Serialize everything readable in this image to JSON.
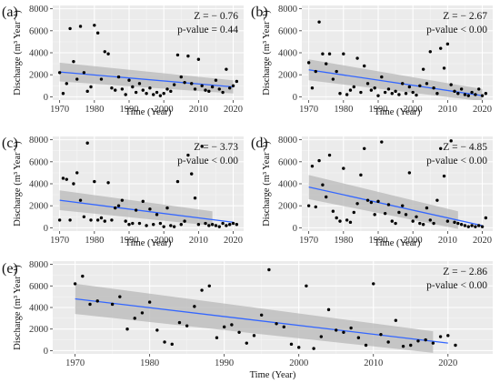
{
  "chart_data": [
    {
      "panel": "(a)",
      "type": "scatter",
      "x_title": "Time (Year)",
      "y_title": "Discharge",
      "y_unit": "(m³ Year⁻¹)",
      "stats": [
        "Z = − 0.76",
        "p-value = 0.44"
      ],
      "xlim": [
        1968,
        2023
      ],
      "ylim": [
        -300,
        8300
      ],
      "x_ticks": [
        1970,
        1980,
        1990,
        2000,
        2010,
        2020
      ],
      "y_ticks": [
        0,
        2000,
        4000,
        6000,
        8000
      ],
      "trend": [
        [
          1970,
          2250
        ],
        [
          2020,
          900
        ]
      ],
      "ci": {
        "x": [
          1970,
          2020
        ],
        "upper": [
          3100,
          1500
        ],
        "lower": [
          1400,
          300
        ]
      },
      "points": [
        [
          1970,
          2200
        ],
        [
          1971,
          300
        ],
        [
          1972,
          1200
        ],
        [
          1973,
          6200
        ],
        [
          1974,
          3200
        ],
        [
          1975,
          1600
        ],
        [
          1976,
          6400
        ],
        [
          1977,
          2200
        ],
        [
          1978,
          500
        ],
        [
          1979,
          900
        ],
        [
          1980,
          6500
        ],
        [
          1981,
          5800
        ],
        [
          1982,
          1600
        ],
        [
          1983,
          4100
        ],
        [
          1984,
          3900
        ],
        [
          1985,
          800
        ],
        [
          1986,
          600
        ],
        [
          1987,
          1800
        ],
        [
          1988,
          700
        ],
        [
          1989,
          200
        ],
        [
          1990,
          1500
        ],
        [
          1991,
          900
        ],
        [
          1992,
          400
        ],
        [
          1993,
          1200
        ],
        [
          1994,
          600
        ],
        [
          1995,
          300
        ],
        [
          1996,
          800
        ],
        [
          1997,
          200
        ],
        [
          1998,
          400
        ],
        [
          1999,
          100
        ],
        [
          2000,
          300
        ],
        [
          2001,
          700
        ],
        [
          2002,
          500
        ],
        [
          2003,
          1100
        ],
        [
          2004,
          3800
        ],
        [
          2005,
          1800
        ],
        [
          2006,
          1300
        ],
        [
          2007,
          3700
        ],
        [
          2008,
          1200
        ],
        [
          2009,
          700
        ],
        [
          2010,
          3400
        ],
        [
          2011,
          1000
        ],
        [
          2012,
          600
        ],
        [
          2013,
          500
        ],
        [
          2014,
          900
        ],
        [
          2015,
          1500
        ],
        [
          2016,
          700
        ],
        [
          2017,
          400
        ],
        [
          2018,
          2500
        ],
        [
          2019,
          800
        ],
        [
          2020,
          1000
        ],
        [
          2021,
          1400
        ]
      ]
    },
    {
      "panel": "(b)",
      "type": "scatter",
      "x_title": "Time (Year)",
      "y_title": "Discharge",
      "y_unit": "(m³ Year⁻¹)",
      "stats": [
        "Z = − 2.67",
        "p-value < 0.00"
      ],
      "xlim": [
        1968,
        2023
      ],
      "ylim": [
        -300,
        8300
      ],
      "x_ticks": [
        1970,
        1980,
        1990,
        2000,
        2010,
        2020
      ],
      "y_ticks": [
        0,
        2000,
        4000,
        6000,
        8000
      ],
      "trend": [
        [
          1970,
          2450
        ],
        [
          2020,
          100
        ]
      ],
      "ci": {
        "x": [
          1970,
          2020
        ],
        "upper": [
          3400,
          700
        ],
        "lower": [
          1500,
          -400
        ]
      },
      "points": [
        [
          1970,
          3100
        ],
        [
          1971,
          800
        ],
        [
          1972,
          2300
        ],
        [
          1973,
          6800
        ],
        [
          1974,
          3900
        ],
        [
          1975,
          3000
        ],
        [
          1976,
          3900
        ],
        [
          1977,
          1600
        ],
        [
          1978,
          2300
        ],
        [
          1979,
          300
        ],
        [
          1980,
          3900
        ],
        [
          1981,
          200
        ],
        [
          1982,
          600
        ],
        [
          1983,
          900
        ],
        [
          1984,
          3500
        ],
        [
          1985,
          400
        ],
        [
          1986,
          2800
        ],
        [
          1987,
          1200
        ],
        [
          1988,
          600
        ],
        [
          1989,
          800
        ],
        [
          1990,
          100
        ],
        [
          1991,
          1800
        ],
        [
          1992,
          400
        ],
        [
          1993,
          700
        ],
        [
          1994,
          300
        ],
        [
          1995,
          500
        ],
        [
          1996,
          200
        ],
        [
          1997,
          1200
        ],
        [
          1998,
          300
        ],
        [
          1999,
          900
        ],
        [
          2000,
          400
        ],
        [
          2001,
          150
        ],
        [
          2002,
          1000
        ],
        [
          2003,
          2500
        ],
        [
          2004,
          1200
        ],
        [
          2005,
          4100
        ],
        [
          2006,
          800
        ],
        [
          2007,
          300
        ],
        [
          2008,
          4400
        ],
        [
          2009,
          2600
        ],
        [
          2010,
          4800
        ],
        [
          2011,
          1100
        ],
        [
          2012,
          500
        ],
        [
          2013,
          300
        ],
        [
          2014,
          700
        ],
        [
          2015,
          200
        ],
        [
          2016,
          100
        ],
        [
          2017,
          400
        ],
        [
          2018,
          200
        ],
        [
          2019,
          700
        ],
        [
          2020,
          100
        ],
        [
          2021,
          300
        ]
      ]
    },
    {
      "panel": "(c)",
      "type": "scatter",
      "x_title": "Time (Year)",
      "y_title": "Discharge",
      "y_unit": "(m³ Year⁻¹)",
      "stats": [
        "Z = − 3.73",
        "p-value < 0.00"
      ],
      "xlim": [
        1968,
        2023
      ],
      "ylim": [
        -300,
        8300
      ],
      "x_ticks": [
        1970,
        1980,
        1990,
        2000,
        2010,
        2020
      ],
      "y_ticks": [
        0,
        2000,
        4000,
        6000,
        8000
      ],
      "trend": [
        [
          1970,
          2500
        ],
        [
          2020,
          500
        ]
      ],
      "ci": {
        "x": [
          1970,
          2014
        ],
        "upper": [
          3400,
          1500
        ],
        "lower": [
          1600,
          200
        ]
      },
      "points": [
        [
          1970,
          700
        ],
        [
          1971,
          4500
        ],
        [
          1972,
          4400
        ],
        [
          1973,
          700
        ],
        [
          1974,
          4000
        ],
        [
          1975,
          5000
        ],
        [
          1976,
          2500
        ],
        [
          1977,
          1000
        ],
        [
          1978,
          7700
        ],
        [
          1979,
          700
        ],
        [
          1980,
          4200
        ],
        [
          1981,
          700
        ],
        [
          1982,
          900
        ],
        [
          1983,
          600
        ],
        [
          1984,
          4100
        ],
        [
          1985,
          700
        ],
        [
          1986,
          1800
        ],
        [
          1987,
          2000
        ],
        [
          1988,
          2500
        ],
        [
          1989,
          600
        ],
        [
          1990,
          300
        ],
        [
          1991,
          400
        ],
        [
          1992,
          1600
        ],
        [
          1993,
          400
        ],
        [
          1994,
          2400
        ],
        [
          1995,
          200
        ],
        [
          1996,
          1700
        ],
        [
          1997,
          300
        ],
        [
          1998,
          1200
        ],
        [
          1999,
          400
        ],
        [
          2000,
          100
        ],
        [
          2001,
          1800
        ],
        [
          2002,
          200
        ],
        [
          2003,
          100
        ],
        [
          2004,
          4200
        ],
        [
          2005,
          300
        ],
        [
          2006,
          600
        ],
        [
          2007,
          6600
        ],
        [
          2008,
          4900
        ],
        [
          2009,
          2700
        ],
        [
          2010,
          300
        ],
        [
          2011,
          7400
        ],
        [
          2012,
          400
        ],
        [
          2013,
          200
        ],
        [
          2014,
          300
        ],
        [
          2015,
          200
        ],
        [
          2016,
          100
        ],
        [
          2017,
          400
        ],
        [
          2018,
          200
        ],
        [
          2019,
          300
        ],
        [
          2020,
          400
        ],
        [
          2021,
          300
        ]
      ]
    },
    {
      "panel": "(d)",
      "type": "scatter",
      "x_title": "Time (Year)",
      "y_title": "Discharge",
      "y_unit": "(m³ Year⁻¹)",
      "stats": [
        "Z = − 4.85",
        "p-value < 0.00"
      ],
      "xlim": [
        1968,
        2023
      ],
      "ylim": [
        -300,
        8300
      ],
      "x_ticks": [
        1970,
        1980,
        1990,
        2000,
        2010,
        2020
      ],
      "y_ticks": [
        0,
        2000,
        4000,
        6000,
        8000
      ],
      "trend": [
        [
          1970,
          3700
        ],
        [
          2020,
          200
        ]
      ],
      "ci": {
        "x": [
          1970,
          2013
        ],
        "upper": [
          4800,
          1500
        ],
        "lower": [
          2600,
          -100
        ]
      },
      "points": [
        [
          1970,
          2000
        ],
        [
          1971,
          5600
        ],
        [
          1972,
          1900
        ],
        [
          1973,
          6100
        ],
        [
          1974,
          3900
        ],
        [
          1975,
          2800
        ],
        [
          1976,
          6600
        ],
        [
          1977,
          1500
        ],
        [
          1978,
          900
        ],
        [
          1979,
          600
        ],
        [
          1980,
          5400
        ],
        [
          1981,
          700
        ],
        [
          1982,
          500
        ],
        [
          1983,
          1400
        ],
        [
          1984,
          2200
        ],
        [
          1985,
          4800
        ],
        [
          1986,
          7200
        ],
        [
          1987,
          2500
        ],
        [
          1988,
          2300
        ],
        [
          1989,
          1200
        ],
        [
          1990,
          2400
        ],
        [
          1991,
          7800
        ],
        [
          1992,
          1300
        ],
        [
          1993,
          2100
        ],
        [
          1994,
          600
        ],
        [
          1995,
          400
        ],
        [
          1996,
          1400
        ],
        [
          1997,
          2000
        ],
        [
          1998,
          1200
        ],
        [
          1999,
          5000
        ],
        [
          2000,
          600
        ],
        [
          2001,
          1000
        ],
        [
          2002,
          400
        ],
        [
          2003,
          300
        ],
        [
          2004,
          1800
        ],
        [
          2005,
          700
        ],
        [
          2006,
          400
        ],
        [
          2007,
          2500
        ],
        [
          2008,
          7200
        ],
        [
          2009,
          4700
        ],
        [
          2010,
          600
        ],
        [
          2011,
          7900
        ],
        [
          2012,
          500
        ],
        [
          2013,
          400
        ],
        [
          2014,
          300
        ],
        [
          2015,
          200
        ],
        [
          2016,
          100
        ],
        [
          2017,
          200
        ],
        [
          2018,
          100
        ],
        [
          2019,
          200
        ],
        [
          2020,
          100
        ],
        [
          2021,
          900
        ]
      ]
    },
    {
      "panel": "(e)",
      "type": "scatter",
      "x_title": "Time (Year)",
      "y_title": "Discharge",
      "y_unit": "(m³ Year⁻¹)",
      "stats": [
        "Z = − 2.86",
        "p-value < 0.00"
      ],
      "xlim": [
        1967,
        2026
      ],
      "ylim": [
        -300,
        8300
      ],
      "x_ticks": [
        1970,
        1980,
        1990,
        2000,
        2010,
        2020
      ],
      "y_ticks": [
        0,
        2000,
        4000,
        6000,
        8000
      ],
      "trend": [
        [
          1970,
          4800
        ],
        [
          2020,
          700
        ]
      ],
      "ci": {
        "x": [
          1970,
          2018
        ],
        "upper": [
          6200,
          1800
        ],
        "lower": [
          3400,
          -200
        ]
      },
      "points": [
        [
          1970,
          6200
        ],
        [
          1971,
          6900
        ],
        [
          1972,
          4300
        ],
        [
          1973,
          4600
        ],
        [
          1975,
          4300
        ],
        [
          1976,
          5000
        ],
        [
          1977,
          2000
        ],
        [
          1978,
          3000
        ],
        [
          1979,
          3500
        ],
        [
          1980,
          4500
        ],
        [
          1981,
          1900
        ],
        [
          1982,
          800
        ],
        [
          1983,
          600
        ],
        [
          1984,
          2600
        ],
        [
          1985,
          2300
        ],
        [
          1986,
          4100
        ],
        [
          1987,
          5600
        ],
        [
          1988,
          6000
        ],
        [
          1989,
          1200
        ],
        [
          1990,
          2200
        ],
        [
          1991,
          2400
        ],
        [
          1992,
          1700
        ],
        [
          1993,
          700
        ],
        [
          1994,
          1400
        ],
        [
          1995,
          3300
        ],
        [
          1996,
          7500
        ],
        [
          1997,
          2500
        ],
        [
          1998,
          2200
        ],
        [
          1999,
          600
        ],
        [
          2000,
          300
        ],
        [
          2001,
          6000
        ],
        [
          2002,
          200
        ],
        [
          2003,
          1300
        ],
        [
          2004,
          3800
        ],
        [
          2005,
          1900
        ],
        [
          2006,
          1700
        ],
        [
          2007,
          2100
        ],
        [
          2008,
          1200
        ],
        [
          2009,
          500
        ],
        [
          2010,
          6200
        ],
        [
          2011,
          1500
        ],
        [
          2012,
          800
        ],
        [
          2013,
          2800
        ],
        [
          2014,
          400
        ],
        [
          2015,
          500
        ],
        [
          2016,
          900
        ],
        [
          2017,
          1000
        ],
        [
          2018,
          700
        ],
        [
          2019,
          1300
        ],
        [
          2020,
          1400
        ],
        [
          2021,
          500
        ]
      ]
    }
  ],
  "style": {
    "panel_bg": "#ebebeb",
    "grid_major": "#ffffff",
    "grid_minor": "#f5f5f5",
    "point_color": "#000000",
    "trend_color": "#3366ff",
    "ci_color": "#b8b8b8"
  }
}
